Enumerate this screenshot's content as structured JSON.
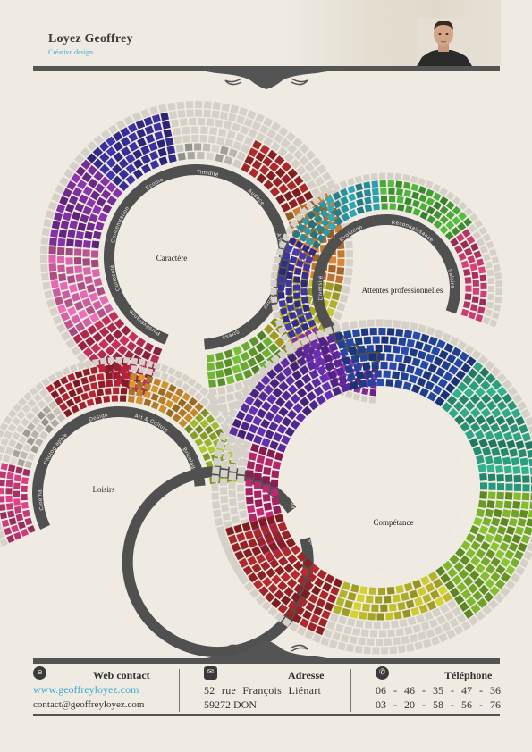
{
  "header": {
    "name": "Loyez Geoffrey",
    "subtitle": "Créative design"
  },
  "colors": {
    "bar": "#545454",
    "ring": "#505050",
    "accent": "#3aaad6",
    "empty_cell": "#d6d1c8"
  },
  "wheels": [
    {
      "title": "Caractère",
      "skills": [
        {
          "label": "Persévérance",
          "level": 0.8,
          "color": "#b52a55"
        },
        {
          "label": "Curiosoté",
          "level": 0.9,
          "color": "#d862a8"
        },
        {
          "label": "Concentration",
          "level": 0.9,
          "color": "#7e2fa0"
        },
        {
          "label": "Ecoute",
          "level": 0.9,
          "color": "#3a2f9e"
        },
        {
          "label": "Timidité",
          "level": 0.3,
          "color": "#c3c0b8"
        },
        {
          "label": "Audace",
          "level": 0.6,
          "color": "#a3262a"
        },
        {
          "label": "Ambition",
          "level": 0.8,
          "color": "#c8782e"
        },
        {
          "label": "Patience",
          "level": 0.8,
          "color": "#b4b22a"
        },
        {
          "label": "Stress",
          "level": 0.6,
          "color": "#6aac32"
        }
      ]
    },
    {
      "title": "Attentes professionnelles",
      "skills": [
        {
          "label": "Formation",
          "level": 0.8,
          "color": "#8a2ea3"
        },
        {
          "label": "Diversité",
          "level": 0.7,
          "color": "#3c34a2"
        },
        {
          "label": "Evolution",
          "level": 0.8,
          "color": "#2a9aa8"
        },
        {
          "label": "Reconnaissance",
          "level": 0.8,
          "color": "#4aaa38"
        },
        {
          "label": "Salaire",
          "level": 0.6,
          "color": "#c63a6e"
        }
      ]
    },
    {
      "title": "Loisirs",
      "skills": [
        {
          "label": "Cinéma",
          "level": 0.7,
          "color": "#c83a7c"
        },
        {
          "label": "Photographie",
          "level": 0.5,
          "color": "#c9c5bd"
        },
        {
          "label": "Design",
          "level": 0.9,
          "color": "#a82030"
        },
        {
          "label": "Art & Culture",
          "level": 0.6,
          "color": "#c88a2c"
        },
        {
          "label": "Bricolage",
          "level": 0.7,
          "color": "#9ab62e"
        }
      ]
    },
    {
      "title": "Compétance",
      "skills": [
        {
          "label": "Anglais",
          "level": 0.5,
          "color": "#b2246a"
        },
        {
          "label": "Relations Clients",
          "level": 0.9,
          "color": "#5a2ba2"
        },
        {
          "label": "Organisation",
          "level": 0.9,
          "color": "#23449e"
        },
        {
          "label": "Marketing",
          "level": 0.9,
          "color": "#2aa082"
        },
        {
          "label": "Gestion PME\\PMI",
          "level": 0.9,
          "color": "#7ab22c"
        },
        {
          "label": "Orthographe",
          "level": 0.5,
          "color": "#bfbd2a"
        },
        {
          "label": "Respect des délais",
          "level": 0.9,
          "color": "#a6262a"
        }
      ]
    }
  ],
  "contact": {
    "web": {
      "icon": "e-icon",
      "title": "Web contact",
      "site": "www.geoffreyloyez.com",
      "email": "contact@geoffreyloyez.com"
    },
    "address": {
      "icon": "envelope-icon",
      "title": "Adresse",
      "line1": "52 rue François Liénart",
      "line2": "59272 DON"
    },
    "phone": {
      "icon": "phone-icon",
      "title": "Téléphone",
      "numbers": [
        "06 - 46 - 35 - 47 - 36",
        "03 - 20 - 58 - 56 - 76"
      ]
    }
  }
}
